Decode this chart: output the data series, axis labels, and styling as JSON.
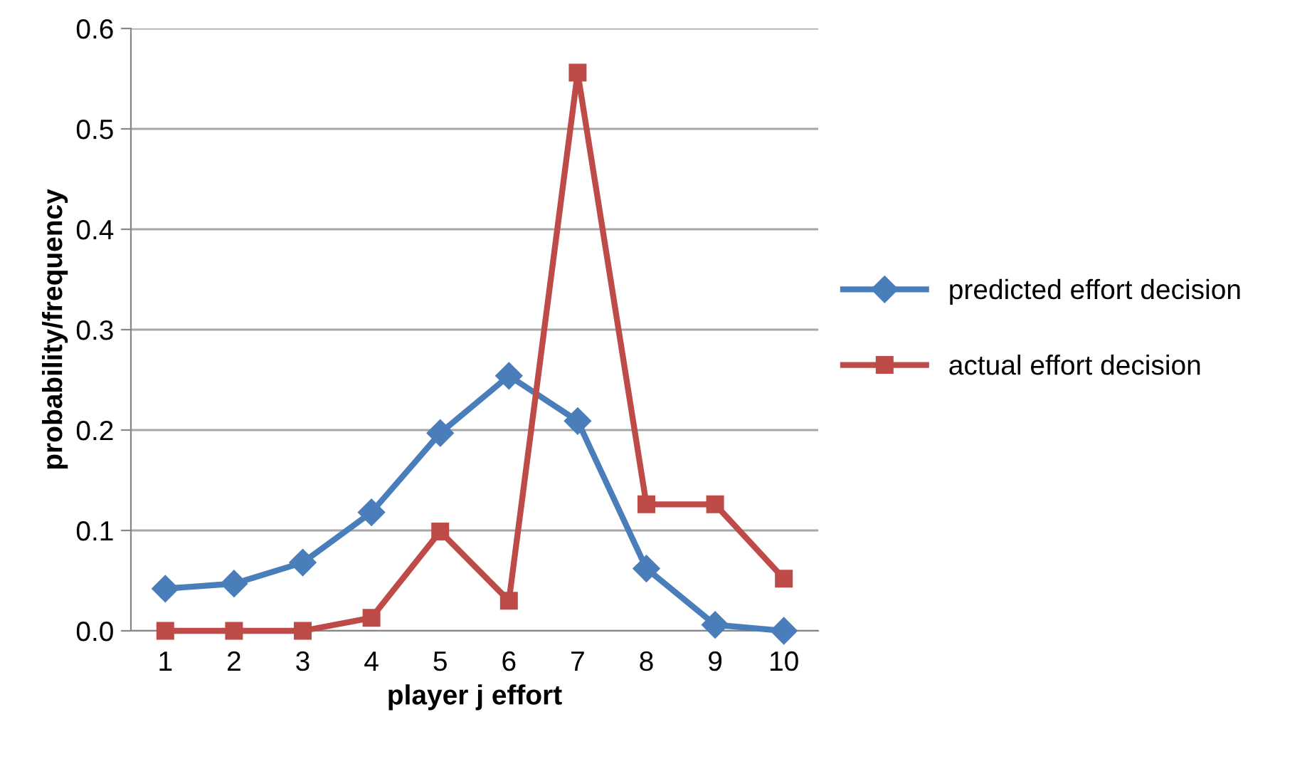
{
  "chart_data": {
    "type": "line",
    "xlabel": "player j effort",
    "ylabel": "probability/frequency",
    "categories": [
      "1",
      "2",
      "3",
      "4",
      "5",
      "6",
      "7",
      "8",
      "9",
      "10"
    ],
    "series": [
      {
        "name": "predicted effort decision",
        "color": "#4a7ebb",
        "marker": "diamond",
        "values": [
          0.042,
          0.047,
          0.068,
          0.118,
          0.197,
          0.254,
          0.209,
          0.062,
          0.006,
          0.0
        ]
      },
      {
        "name": "actual effort decision",
        "color": "#be4b48",
        "marker": "square",
        "values": [
          0.0,
          0.0,
          0.0,
          0.013,
          0.099,
          0.03,
          0.556,
          0.126,
          0.126,
          0.052
        ]
      }
    ],
    "ylim": [
      0,
      0.6
    ],
    "yticks": [
      {
        "value": 0,
        "label": "0.0"
      },
      {
        "value": 0.1,
        "label": "0.1"
      },
      {
        "value": 0.2,
        "label": "0.2"
      },
      {
        "value": 0.3,
        "label": "0.3"
      },
      {
        "value": 0.4,
        "label": "0.4"
      },
      {
        "value": 0.5,
        "label": "0.5"
      },
      {
        "value": 0.6,
        "label": "0.6"
      }
    ],
    "grid": "y",
    "legend": "right",
    "line_style": "solid"
  }
}
